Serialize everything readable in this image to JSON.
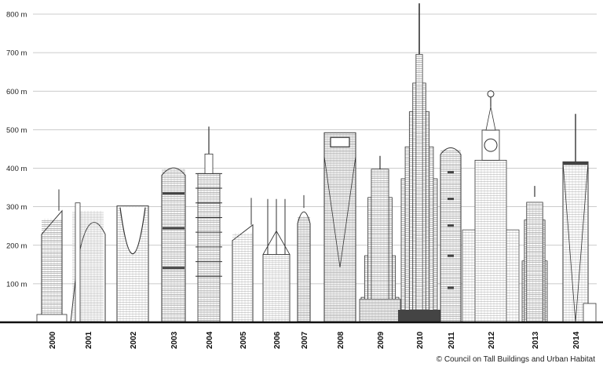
{
  "credit": "© Council on Tall Buildings and Urban Habitat",
  "chart_data": {
    "type": "bar",
    "y_axis": {
      "unit": "m",
      "ticks": [
        "100 m",
        "200 m",
        "300 m",
        "400 m",
        "500 m",
        "600 m",
        "700 m",
        "800 m"
      ],
      "range": [
        0,
        850
      ],
      "grid": true
    },
    "categories": [
      "2000",
      "2001",
      "2002",
      "2003",
      "2004",
      "2005",
      "2006",
      "2007",
      "2008",
      "2009",
      "2010",
      "2011",
      "2012",
      "2013",
      "2014"
    ],
    "values": [
      345,
      310,
      302,
      412,
      508,
      323,
      320,
      330,
      492,
      432,
      828,
      462,
      601,
      354,
      541
    ],
    "colors": {
      "line": "#333333",
      "grid": "#bbbbbb",
      "axis": "#111111",
      "dark_band": "#444444"
    }
  }
}
